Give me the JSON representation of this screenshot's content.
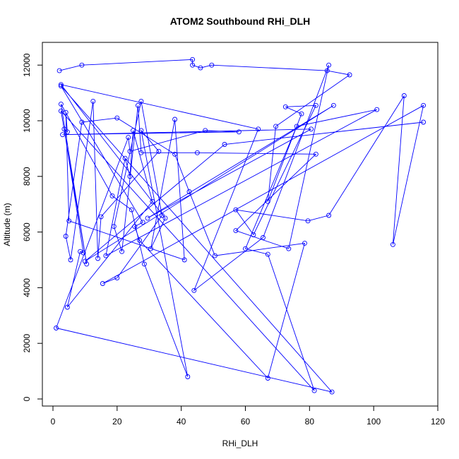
{
  "chart_data": {
    "type": "line",
    "title": "ATOM2 Southbound RHi_DLH",
    "xlabel": "RHi_DLH",
    "ylabel": "Altitude (m)",
    "xlim": [
      0,
      120
    ],
    "ylim": [
      0,
      12500
    ],
    "x_ticks": [
      0,
      20,
      40,
      60,
      80,
      100,
      120
    ],
    "y_ticks": [
      0,
      2000,
      4000,
      6000,
      8000,
      10000,
      12000
    ],
    "grid": false,
    "legend": "none",
    "colors": {
      "series": "#0000ff",
      "axis": "#000000"
    },
    "markers": "open-circle",
    "series": [
      {
        "points": [
          [
            2,
            11800
          ],
          [
            9,
            12000
          ],
          [
            43.5,
            12200
          ],
          [
            43.5,
            12000
          ],
          [
            46,
            11900
          ],
          [
            49.5,
            12000
          ],
          [
            85.5,
            11800
          ],
          [
            92.5,
            11650
          ],
          [
            69.5,
            9800
          ],
          [
            67,
            7100
          ],
          [
            77.5,
            10250
          ],
          [
            72.5,
            10500
          ],
          [
            82,
            10550
          ],
          [
            62.5,
            5900
          ],
          [
            57,
            6800
          ],
          [
            79.5,
            6400
          ],
          [
            86,
            6600
          ],
          [
            109.5,
            10900
          ],
          [
            106,
            5550
          ],
          [
            115.5,
            10550
          ],
          [
            15.5,
            4150
          ],
          [
            20,
            4350
          ],
          [
            34,
            6600
          ],
          [
            27.5,
            10700
          ],
          [
            19,
            6200
          ],
          [
            21.5,
            5300
          ],
          [
            26.5,
            10550
          ],
          [
            27.5,
            8850
          ],
          [
            45,
            8850
          ],
          [
            82,
            8800
          ],
          [
            57,
            6050
          ],
          [
            73.5,
            5400
          ],
          [
            86,
            12000
          ],
          [
            65.5,
            5800
          ],
          [
            44,
            3900
          ],
          [
            64,
            9700
          ],
          [
            2.5,
            11300
          ],
          [
            35,
            6500
          ],
          [
            30.5,
            5400
          ],
          [
            38,
            10050
          ],
          [
            41,
            5000
          ],
          [
            5,
            6400
          ],
          [
            4,
            10300
          ],
          [
            4.5,
            9600
          ],
          [
            3.5,
            9700
          ],
          [
            9.5,
            5250
          ],
          [
            8.5,
            5300
          ],
          [
            4.5,
            3300
          ],
          [
            31,
            7100
          ],
          [
            25,
            9650
          ],
          [
            24,
            8000
          ],
          [
            22.5,
            8650
          ],
          [
            16.5,
            5150
          ],
          [
            101,
            10400
          ],
          [
            76,
            9800
          ],
          [
            60,
            5400
          ],
          [
            67,
            5200
          ],
          [
            81.5,
            300
          ],
          [
            2.5,
            10350
          ],
          [
            10.5,
            4850
          ],
          [
            2.5,
            10600
          ],
          [
            18.5,
            7300
          ],
          [
            24.5,
            6800
          ],
          [
            28.5,
            4850
          ],
          [
            42,
            800
          ],
          [
            27.5,
            9650
          ],
          [
            33,
            8900
          ],
          [
            15,
            6550
          ],
          [
            14,
            5050
          ],
          [
            12.5,
            10700
          ],
          [
            5.5,
            5000
          ],
          [
            4,
            5850
          ],
          [
            9,
            9950
          ],
          [
            20,
            10100
          ],
          [
            38,
            8800
          ],
          [
            42.5,
            7450
          ],
          [
            50.5,
            5150
          ],
          [
            78.5,
            5600
          ],
          [
            67,
            750
          ],
          [
            27,
            5700
          ],
          [
            25.5,
            6200
          ],
          [
            28,
            6350
          ],
          [
            2.5,
            11250
          ],
          [
            87,
            250
          ],
          [
            1,
            2550
          ],
          [
            23.5,
            9400
          ],
          [
            24,
            8900
          ],
          [
            47.5,
            9650
          ],
          [
            58,
            9600
          ],
          [
            3,
            9500
          ],
          [
            80.5,
            9700
          ],
          [
            29.5,
            6500
          ],
          [
            87.5,
            10550
          ],
          [
            10,
            4950
          ],
          [
            53.5,
            9150
          ],
          [
            115.5,
            9950
          ]
        ]
      }
    ]
  }
}
